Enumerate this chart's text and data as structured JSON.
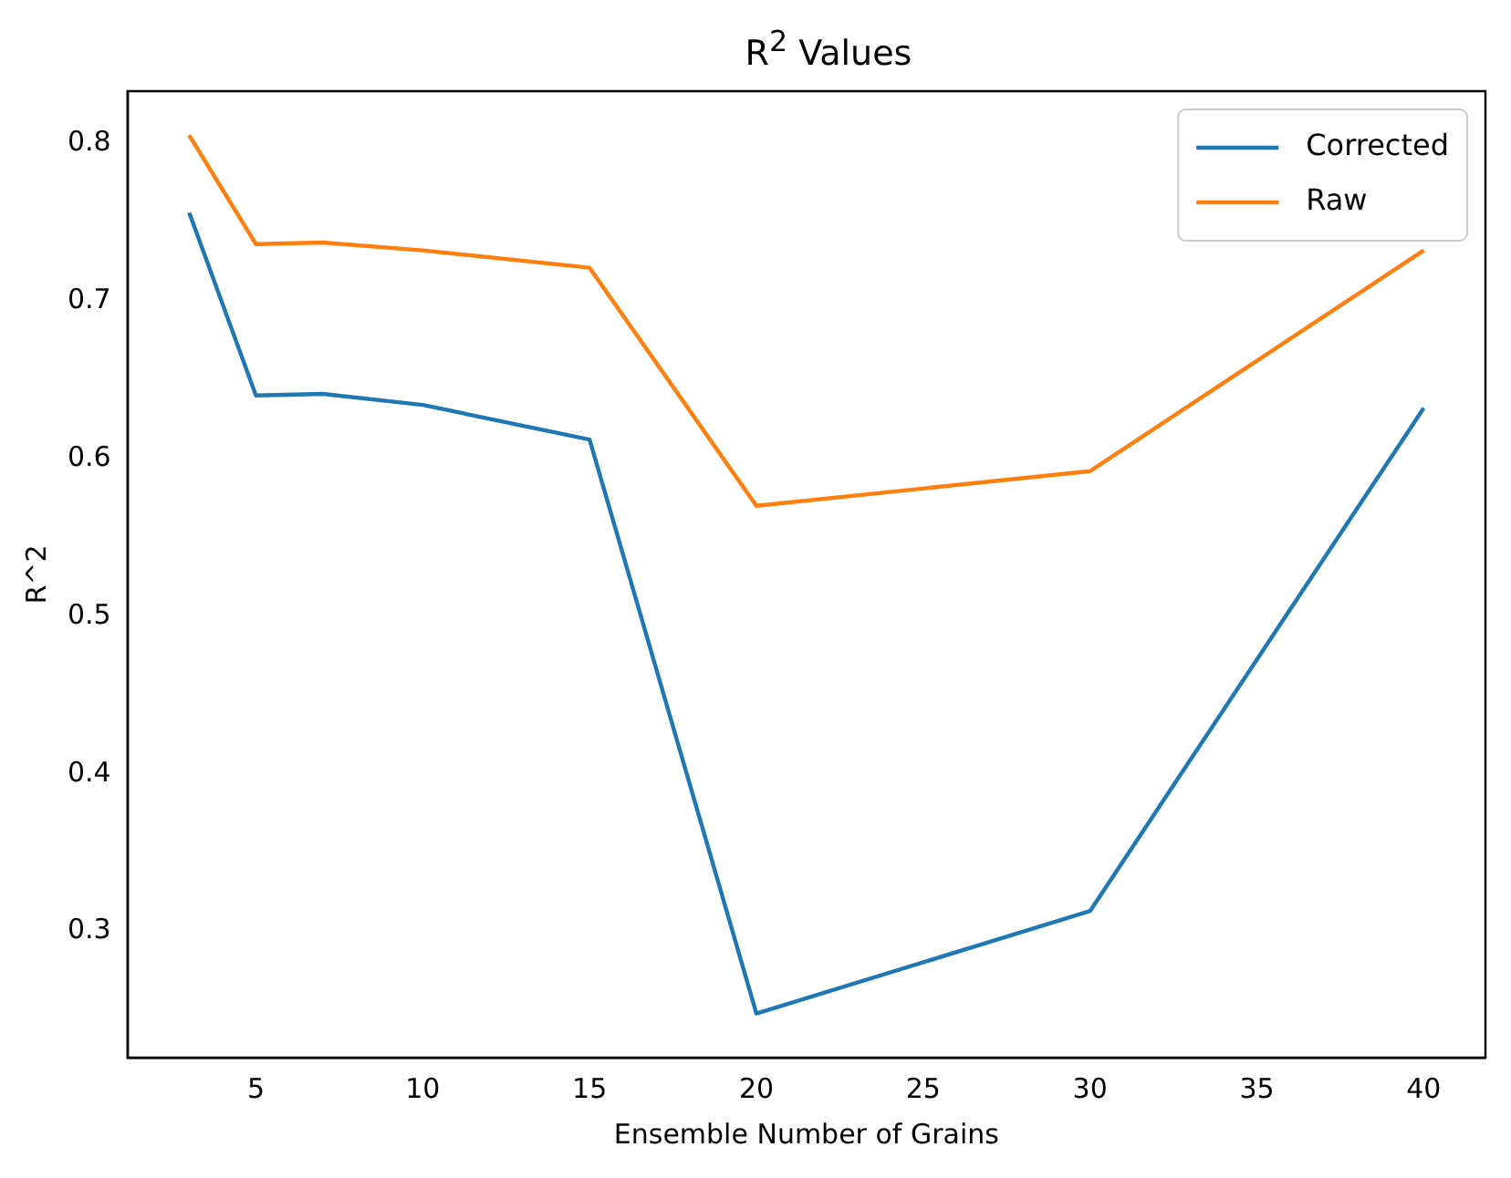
{
  "chart_data": {
    "type": "line",
    "title": "R$^{2}$ Values",
    "xlabel": "Ensemble Number of Grains",
    "ylabel": "R^2",
    "x": [
      3,
      5,
      7,
      10,
      15,
      20,
      30,
      40
    ],
    "series": [
      {
        "name": "Corrected",
        "color": "#1f77b4",
        "values": [
          0.756,
          0.64,
          0.641,
          0.634,
          0.612,
          0.248,
          0.313,
          0.632
        ]
      },
      {
        "name": "Raw",
        "color": "#ff7f0e",
        "values": [
          0.805,
          0.736,
          0.737,
          0.732,
          0.721,
          0.57,
          0.592,
          0.732
        ]
      }
    ],
    "xlim": [
      1.15,
      41.85
    ],
    "xticks": [
      5,
      10,
      15,
      20,
      25,
      30,
      35,
      40
    ],
    "ylim": [
      0.22,
      0.833
    ],
    "yticks": [
      0.3,
      0.4,
      0.5,
      0.6,
      0.7,
      0.8
    ],
    "legend": "top right",
    "grid": false,
    "marker": "none",
    "line_style": "solid"
  }
}
